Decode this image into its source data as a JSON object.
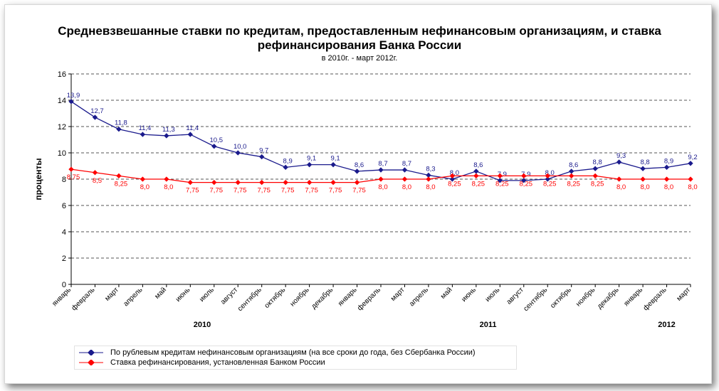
{
  "chart_data": {
    "type": "line",
    "title": "Средневзвешанные ставки по кредитам, предоставленным нефинансовым организациям, и ставка рефинансирования Банка России",
    "subtitle": "в 2010г. - март 2012г.",
    "ylabel": "проценты",
    "ylim": [
      0,
      16
    ],
    "yticks": [
      0,
      2,
      4,
      6,
      8,
      10,
      12,
      14,
      16
    ],
    "grid": true,
    "legend_position": "bottom",
    "categories": [
      "январь",
      "февраль",
      "март",
      "апрель",
      "май",
      "июнь",
      "июль",
      "август",
      "сентябрь",
      "октябрь",
      "ноябрь",
      "декабрь",
      "январь",
      "февраль",
      "март",
      "апрель",
      "май",
      "июнь",
      "июль",
      "август",
      "сентябрь",
      "октябрь",
      "ноябрь",
      "декабрь",
      "январь",
      "февраль",
      "март"
    ],
    "years": [
      {
        "label": "2010",
        "start": 0,
        "end": 11
      },
      {
        "label": "2011",
        "start": 12,
        "end": 23
      },
      {
        "label": "2012",
        "start": 24,
        "end": 26
      }
    ],
    "series": [
      {
        "name": "По рублевым кредитам нефинансовым организациям (на все сроки до года, без Сбербанка России)",
        "color": "#1a1a8c",
        "values": [
          13.9,
          12.7,
          11.8,
          11.4,
          11.3,
          11.4,
          10.5,
          10.0,
          9.7,
          8.9,
          9.1,
          9.1,
          8.6,
          8.7,
          8.7,
          8.3,
          8.0,
          8.6,
          7.9,
          7.9,
          8.0,
          8.6,
          8.8,
          9.3,
          8.8,
          8.9,
          9.2
        ],
        "labels": [
          "13,9",
          "12,7",
          "11,8",
          "11,4",
          "11,3",
          "11,4",
          "10,5",
          "10,0",
          "9,7",
          "8,9",
          "9,1",
          "9,1",
          "8,6",
          "8,7",
          "8,7",
          "8,3",
          "8,0",
          "8,6",
          "7,9",
          "7,9",
          "8,0",
          "8,6",
          "8,8",
          "9,3",
          "8,8",
          "8,9",
          "9,2"
        ]
      },
      {
        "name": "Ставка рефинансирования, установленная Банком России",
        "color": "#ff0000",
        "values": [
          8.75,
          8.5,
          8.25,
          8.0,
          8.0,
          7.75,
          7.75,
          7.75,
          7.75,
          7.75,
          7.75,
          7.75,
          7.75,
          8.0,
          8.0,
          8.0,
          8.25,
          8.25,
          8.25,
          8.25,
          8.25,
          8.25,
          8.25,
          8.0,
          8.0,
          8.0,
          8.0
        ],
        "labels": [
          "8,75",
          "8,5",
          "8,25",
          "8,0",
          "8,0",
          "7,75",
          "7,75",
          "7,75",
          "7,75",
          "7,75",
          "7,75",
          "7,75",
          "7,75",
          "8,0",
          "8,0",
          "8,0",
          "8,25",
          "8,25",
          "8,25",
          "8,25",
          "8,25",
          "8,25",
          "8,25",
          "8,0",
          "8,0",
          "8,0",
          "8,0"
        ]
      }
    ]
  }
}
